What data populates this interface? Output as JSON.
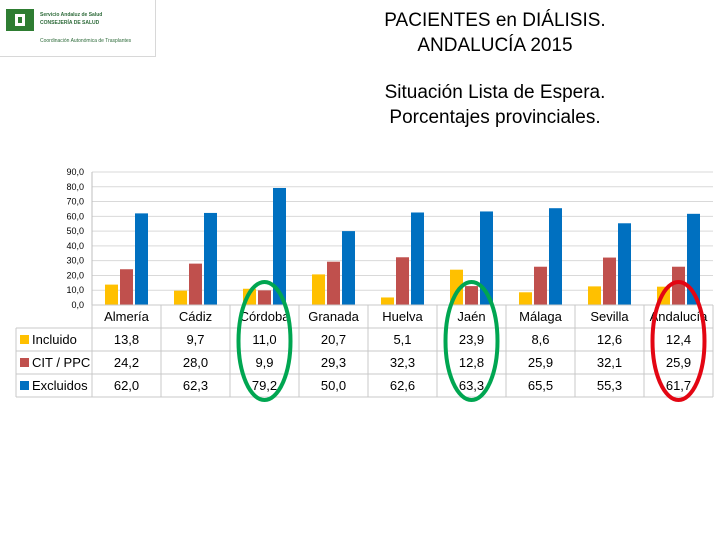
{
  "logo": {
    "line1": "Servicio Andaluz de Salud",
    "line2": "CONSEJERÍA DE SALUD",
    "line3": "Coordinación Autonómica de Trasplantes"
  },
  "header": {
    "title_line1": "PACIENTES en DIÁLISIS.",
    "title_line2": "ANDALUCÍA  2015",
    "subtitle_line1": "Situación Lista de Espera.",
    "subtitle_line2": "Porcentajes provinciales."
  },
  "colors": {
    "incluido": "#FFC000",
    "cit_ppc": "#C0504D",
    "excluidos": "#0070C0",
    "highlight_green": "#00A651",
    "highlight_red": "#E30613"
  },
  "chart_data": {
    "type": "bar",
    "categories": [
      "Almería",
      "Cádiz",
      "Córdoba",
      "Granada",
      "Huelva",
      "Jaén",
      "Málaga",
      "Sevilla",
      "Andalucía"
    ],
    "series": [
      {
        "name": "Incluido",
        "values": [
          13.8,
          9.7,
          11.0,
          20.7,
          5.1,
          23.9,
          8.6,
          12.6,
          12.4
        ],
        "labels": [
          "13,8",
          "9,7",
          "11,0",
          "20,7",
          "5,1",
          "23,9",
          "8,6",
          "12,6",
          "12,4"
        ]
      },
      {
        "name": "CIT / PPC",
        "values": [
          24.2,
          28.0,
          9.9,
          29.3,
          32.3,
          12.8,
          25.9,
          32.1,
          25.9
        ],
        "labels": [
          "24,2",
          "28,0",
          "9,9",
          "29,3",
          "32,3",
          "12,8",
          "25,9",
          "32,1",
          "25,9"
        ]
      },
      {
        "name": "Excluidos",
        "values": [
          62.0,
          62.3,
          79.2,
          50.0,
          62.6,
          63.3,
          65.5,
          55.3,
          61.7
        ],
        "labels": [
          "62,0",
          "62,3",
          "79,2",
          "50,0",
          "62,6",
          "63,3",
          "65,5",
          "55,3",
          "61,7"
        ]
      }
    ],
    "ylim": [
      0,
      90
    ],
    "yticks": [
      "0,0",
      "10,0",
      "20,0",
      "30,0",
      "40,0",
      "50,0",
      "60,0",
      "70,0",
      "80,0",
      "90,0"
    ],
    "grid": true,
    "legend": "data table rows",
    "highlights": [
      {
        "category": "Córdoba",
        "color": "green"
      },
      {
        "category": "Jaén",
        "color": "green"
      },
      {
        "category": "Andalucía",
        "color": "red"
      }
    ]
  }
}
